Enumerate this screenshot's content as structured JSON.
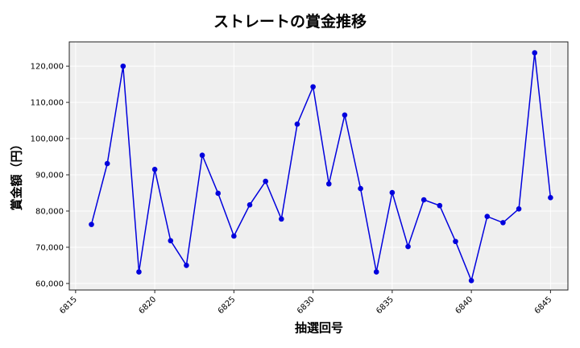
{
  "chart_data": {
    "type": "line",
    "title": "ストレートの賞金推移",
    "xlabel": "抽選回号",
    "ylabel": "賞金額（円）",
    "x": [
      6816,
      6817,
      6818,
      6819,
      6820,
      6821,
      6822,
      6823,
      6824,
      6825,
      6826,
      6827,
      6828,
      6829,
      6830,
      6831,
      6832,
      6833,
      6834,
      6835,
      6836,
      6837,
      6838,
      6839,
      6840,
      6841,
      6842,
      6843,
      6844,
      6845
    ],
    "series": [
      {
        "name": "ストレート",
        "color": "#0000dd",
        "values": [
          76300,
          93100,
          120000,
          63200,
          91500,
          71800,
          65000,
          95400,
          84900,
          73100,
          81700,
          88200,
          77800,
          104000,
          114300,
          87500,
          106500,
          86200,
          63200,
          85100,
          70200,
          83100,
          81500,
          71600,
          60800,
          78500,
          76800,
          80600,
          123700,
          83700
        ]
      }
    ],
    "xticks": [
      6815,
      6820,
      6825,
      6830,
      6835,
      6840,
      6845
    ],
    "xtick_labels": [
      "6815",
      "6820",
      "6825",
      "6830",
      "6835",
      "6840",
      "6845"
    ],
    "yticks": [
      60000,
      70000,
      80000,
      90000,
      100000,
      110000,
      120000
    ],
    "ytick_labels": [
      "60,000",
      "70,000",
      "80,000",
      "90,000",
      "100,000",
      "110,000",
      "120,000"
    ],
    "xlim": [
      6814.6,
      6846.1
    ],
    "ylim": [
      58200,
      126700
    ],
    "grid": true,
    "legend": null,
    "background": "#efefef"
  }
}
